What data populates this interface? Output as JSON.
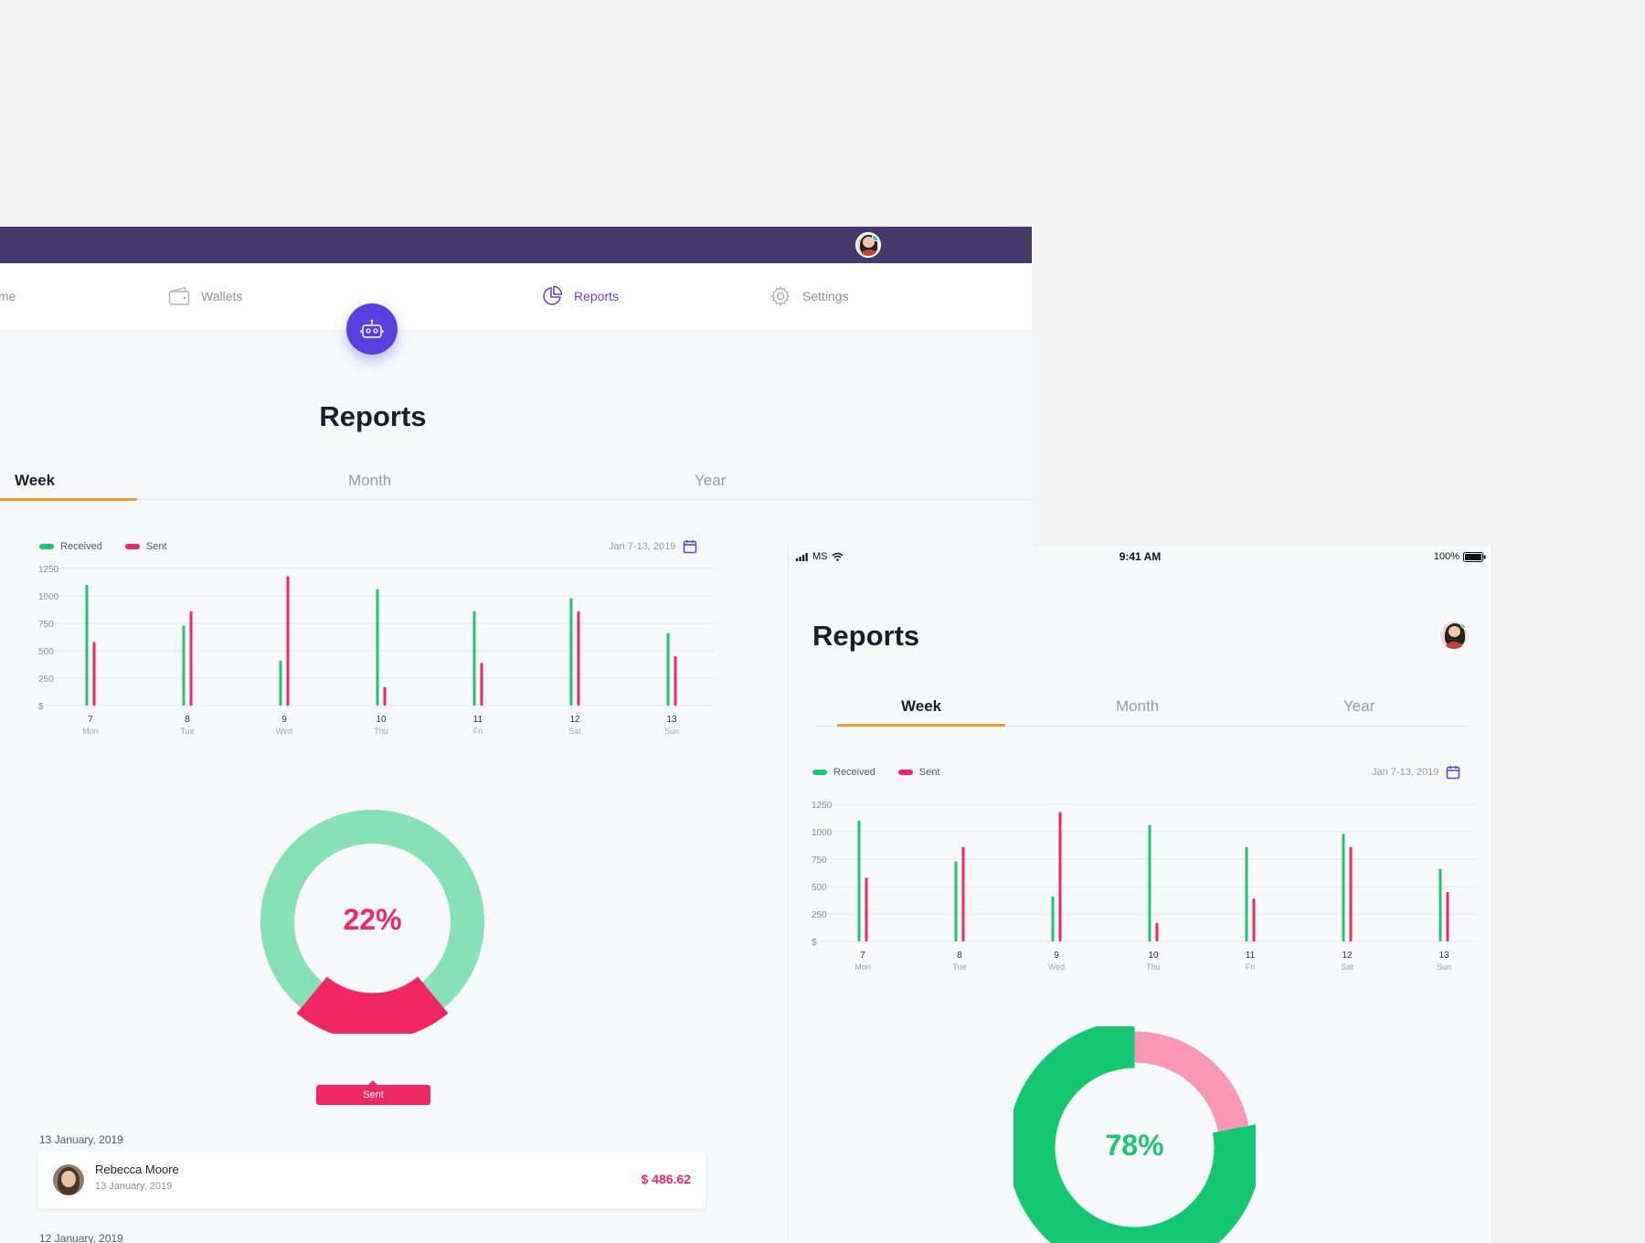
{
  "desktop": {
    "nav": {
      "home_fragment": "me",
      "wallets": "Wallets",
      "reports": "Reports",
      "settings": "Settings"
    },
    "title": "Reports",
    "tabs": [
      "Week",
      "Month",
      "Year"
    ],
    "legend": {
      "received": "Received",
      "sent": "Sent"
    },
    "date_range": "Jan 7-13, 2019",
    "donut": {
      "percent_label": "22%",
      "sent_fraction": 0.22,
      "chip_label": "Sent"
    },
    "transactions": {
      "date_heading_1": "13 January, 2019",
      "item": {
        "name": "Rebecca Moore",
        "date": "13 January, 2019",
        "amount": "$ 486.62"
      },
      "date_heading_2": "12 January, 2019"
    }
  },
  "mobile": {
    "status": {
      "carrier": "MS",
      "time": "9:41 AM",
      "battery": "100%"
    },
    "title": "Reports",
    "tabs": [
      "Week",
      "Month",
      "Year"
    ],
    "legend": {
      "received": "Received",
      "sent": "Sent"
    },
    "date_range": "Jan 7-13, 2019",
    "donut": {
      "percent_label": "78%",
      "received_fraction": 0.78
    }
  },
  "colors": {
    "received": "#19c775",
    "sent": "#f02764",
    "accent": "#5c47d6",
    "topbar": "#453a6c",
    "tab_underline": "#f29a2e"
  },
  "chart_data": [
    {
      "type": "bar",
      "categories": [
        "7",
        "8",
        "9",
        "10",
        "11",
        "12",
        "13"
      ],
      "sublabels": [
        "Mon",
        "Tue",
        "Wed",
        "Thu",
        "Fri",
        "Sat",
        "Sun"
      ],
      "yticks": [
        "$",
        "250",
        "500",
        "750",
        "1000",
        "1250"
      ],
      "ylim": [
        0,
        1250
      ],
      "series": [
        {
          "name": "Received",
          "values": [
            1100,
            730,
            410,
            1060,
            860,
            980,
            660
          ]
        },
        {
          "name": "Sent",
          "values": [
            580,
            860,
            1180,
            170,
            390,
            860,
            450
          ]
        }
      ],
      "legend": "top-left",
      "grid": true
    },
    {
      "type": "bar",
      "categories": [
        "7",
        "8",
        "9",
        "10",
        "11",
        "12",
        "13"
      ],
      "sublabels": [
        "Mon",
        "Tue",
        "Wed",
        "Thu",
        "Fri",
        "Sat",
        "Sun"
      ],
      "yticks": [
        "$",
        "250",
        "500",
        "750",
        "1000",
        "1250"
      ],
      "ylim": [
        0,
        1250
      ],
      "series": [
        {
          "name": "Received",
          "values": [
            1100,
            730,
            410,
            1060,
            860,
            980,
            660
          ]
        },
        {
          "name": "Sent",
          "values": [
            580,
            860,
            1180,
            170,
            390,
            860,
            450
          ]
        }
      ],
      "legend": "top-left",
      "grid": true
    }
  ]
}
